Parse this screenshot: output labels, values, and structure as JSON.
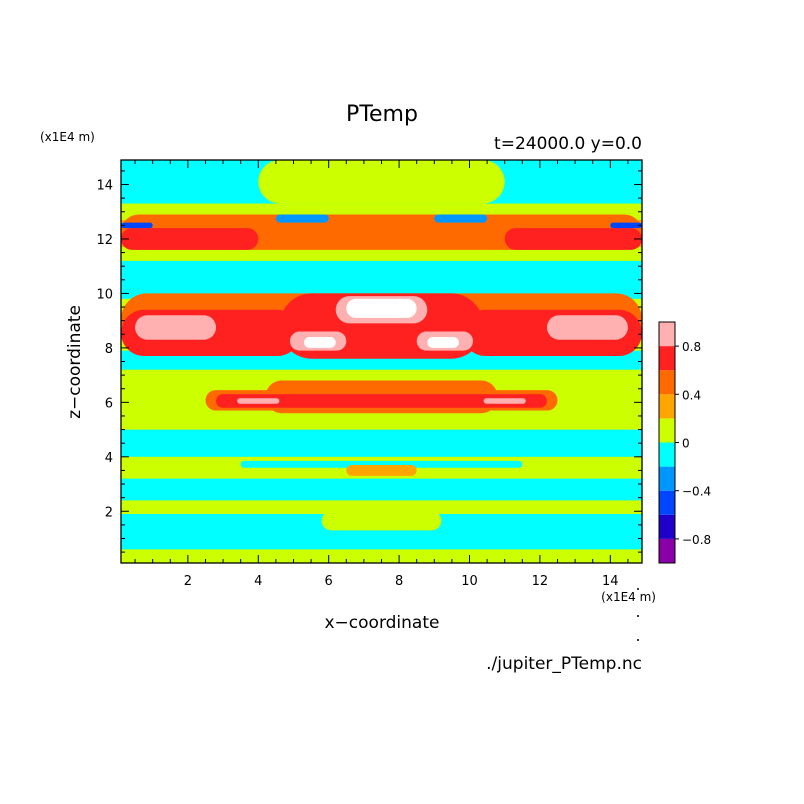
{
  "chart_data": {
    "type": "heatmap",
    "title": "PTemp",
    "subtitle": "t=24000.0 y=0.0",
    "xlabel": "x−coordinate",
    "ylabel": "z−coordinate",
    "x_multiplier": "(x1E4 m)",
    "y_multiplier": "(x1E4 m)",
    "source_file": "./jupiter_PTemp.nc",
    "xlim": [
      0.1,
      14.9
    ],
    "ylim": [
      0.1,
      14.9
    ],
    "x_ticks": [
      2,
      4,
      6,
      8,
      10,
      12,
      14
    ],
    "y_ticks": [
      2,
      4,
      6,
      8,
      10,
      12,
      14
    ],
    "grid": false,
    "colorbar": {
      "levels": [
        -1.0,
        -0.8,
        -0.6,
        -0.4,
        -0.2,
        0,
        0.2,
        0.4,
        0.6,
        0.8,
        1.0
      ],
      "colors": [
        "#8a00a8",
        "#1e00c8",
        "#0046ff",
        "#0096ff",
        "#00ffff",
        "#ccff00",
        "#ffa500",
        "#ff6a00",
        "#ff2020",
        "#ffb0b0"
      ],
      "labels": [
        {
          "value": 0.8,
          "text": "0.8"
        },
        {
          "value": 0.4,
          "text": "0.4"
        },
        {
          "value": 0,
          "text": "0"
        },
        {
          "value": -0.4,
          "text": "−0.4"
        },
        {
          "value": -0.8,
          "text": "−0.8"
        }
      ],
      "above_max_color": "#ffffff"
    },
    "bands": [
      {
        "z": [
          0.1,
          0.6
        ],
        "v": 0.1
      },
      {
        "z": [
          0.6,
          1.9
        ],
        "v": -0.1
      },
      {
        "z": [
          1.9,
          2.4
        ],
        "v": 0.1
      },
      {
        "z": [
          2.4,
          3.2
        ],
        "v": -0.1
      },
      {
        "z": [
          3.2,
          4.0
        ],
        "v": 0.1
      },
      {
        "z": [
          4.0,
          5.0
        ],
        "v": -0.1
      },
      {
        "z": [
          5.0,
          5.6
        ],
        "v": 0.1
      },
      {
        "z": [
          5.6,
          6.6
        ],
        "v": 0.1
      },
      {
        "z": [
          6.6,
          7.2
        ],
        "v": 0.1
      },
      {
        "z": [
          7.2,
          7.9
        ],
        "v": -0.1
      },
      {
        "z": [
          7.9,
          9.8
        ],
        "v": 0.1
      },
      {
        "z": [
          9.8,
          11.2
        ],
        "v": -0.1
      },
      {
        "z": [
          11.2,
          11.7
        ],
        "v": 0.1
      },
      {
        "z": [
          11.7,
          12.7
        ],
        "v": 0.3
      },
      {
        "z": [
          12.7,
          13.3
        ],
        "v": 0.1
      },
      {
        "z": [
          13.3,
          14.9
        ],
        "v": -0.1
      }
    ],
    "features": [
      {
        "x": [
          0.1,
          14.9
        ],
        "z": [
          0.1,
          0.55
        ],
        "v": 0.1
      },
      {
        "x": [
          5.8,
          9.2
        ],
        "z": [
          1.3,
          2.0
        ],
        "v": 0.1
      },
      {
        "x": [
          3.5,
          11.5
        ],
        "z": [
          3.6,
          3.85
        ],
        "v": -0.1
      },
      {
        "x": [
          6.5,
          8.5
        ],
        "z": [
          3.3,
          3.7
        ],
        "v": 0.3
      },
      {
        "x": [
          4.2,
          10.8
        ],
        "z": [
          5.6,
          6.8
        ],
        "v": 0.5
      },
      {
        "x": [
          2.5,
          12.5
        ],
        "z": [
          5.7,
          6.45
        ],
        "v": 0.5
      },
      {
        "x": [
          2.8,
          12.2
        ],
        "z": [
          5.8,
          6.3
        ],
        "v": 0.7
      },
      {
        "x": [
          3.4,
          4.6
        ],
        "z": [
          5.95,
          6.15
        ],
        "v": 0.9
      },
      {
        "x": [
          10.4,
          11.6
        ],
        "z": [
          5.95,
          6.15
        ],
        "v": 0.9
      },
      {
        "x": [
          0.1,
          14.9
        ],
        "z": [
          8.1,
          10.0
        ],
        "v": 0.5
      },
      {
        "x": [
          0.1,
          5.2
        ],
        "z": [
          7.7,
          9.4
        ],
        "v": 0.7
      },
      {
        "x": [
          9.8,
          14.9
        ],
        "z": [
          7.7,
          9.4
        ],
        "v": 0.7
      },
      {
        "x": [
          0.5,
          2.8
        ],
        "z": [
          8.3,
          9.2
        ],
        "v": 0.9
      },
      {
        "x": [
          12.2,
          14.5
        ],
        "z": [
          8.3,
          9.2
        ],
        "v": 0.9
      },
      {
        "x": [
          4.6,
          10.4
        ],
        "z": [
          7.6,
          10.0
        ],
        "v": 0.7
      },
      {
        "x": [
          6.2,
          8.8
        ],
        "z": [
          8.9,
          9.9
        ],
        "v": 0.9
      },
      {
        "x": [
          6.5,
          8.5
        ],
        "z": [
          9.1,
          9.8
        ],
        "v": 1.1
      },
      {
        "x": [
          4.9,
          6.5
        ],
        "z": [
          7.9,
          8.6
        ],
        "v": 0.9
      },
      {
        "x": [
          8.5,
          10.1
        ],
        "z": [
          7.9,
          8.6
        ],
        "v": 0.9
      },
      {
        "x": [
          5.3,
          6.2
        ],
        "z": [
          8.0,
          8.4
        ],
        "v": 1.1
      },
      {
        "x": [
          8.8,
          9.7
        ],
        "z": [
          8.0,
          8.4
        ],
        "v": 1.1
      },
      {
        "x": [
          0.1,
          14.9
        ],
        "z": [
          11.6,
          12.9
        ],
        "v": 0.5
      },
      {
        "x": [
          0.1,
          4.0
        ],
        "z": [
          11.6,
          12.4
        ],
        "v": 0.7
      },
      {
        "x": [
          11.0,
          14.9
        ],
        "z": [
          11.6,
          12.4
        ],
        "v": 0.7
      },
      {
        "x": [
          0.1,
          1.0
        ],
        "z": [
          12.4,
          12.6
        ],
        "v": -0.5
      },
      {
        "x": [
          14.0,
          14.9
        ],
        "z": [
          12.4,
          12.6
        ],
        "v": -0.5
      },
      {
        "x": [
          4.5,
          6.0
        ],
        "z": [
          12.6,
          12.9
        ],
        "v": -0.3
      },
      {
        "x": [
          9.0,
          10.5
        ],
        "z": [
          12.6,
          12.9
        ],
        "v": -0.3
      },
      {
        "x": [
          4.0,
          11.0
        ],
        "z": [
          13.3,
          14.9
        ],
        "v": 0.1
      }
    ]
  }
}
